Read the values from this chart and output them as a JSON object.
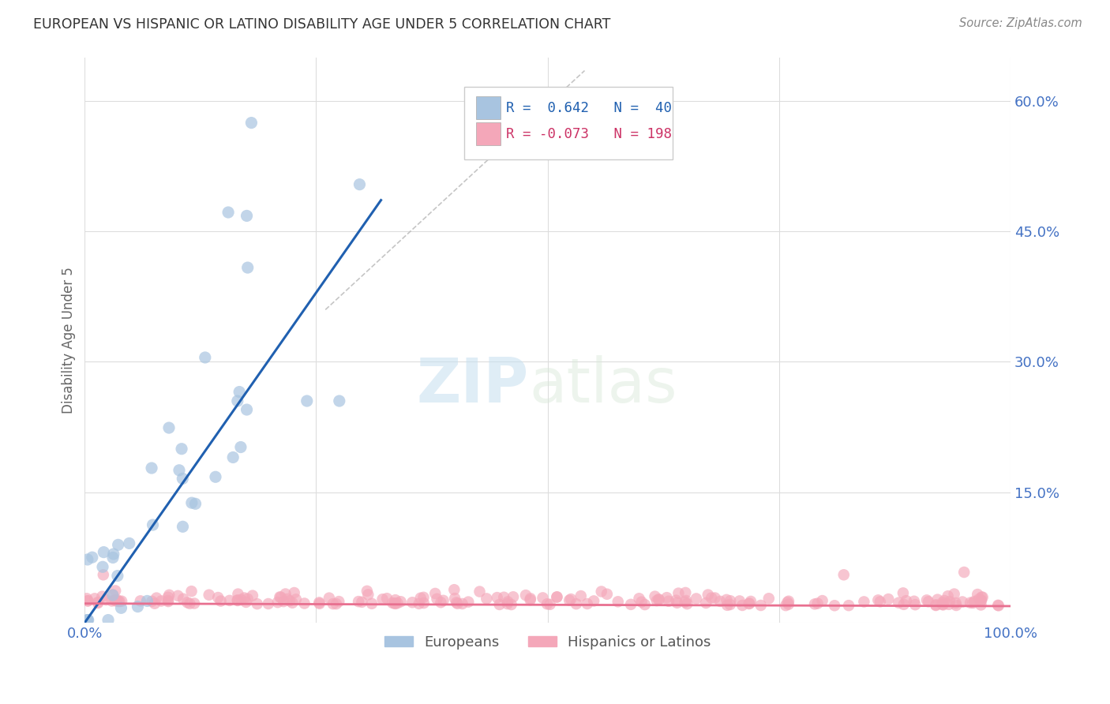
{
  "title": "EUROPEAN VS HISPANIC OR LATINO DISABILITY AGE UNDER 5 CORRELATION CHART",
  "source": "Source: ZipAtlas.com",
  "ylabel": "Disability Age Under 5",
  "xlabel": "",
  "xlim": [
    0.0,
    1.0
  ],
  "ylim": [
    0.0,
    0.65
  ],
  "x_ticks": [
    0.0,
    0.25,
    0.5,
    0.75,
    1.0
  ],
  "y_ticks": [
    0.0,
    0.15,
    0.3,
    0.45,
    0.6
  ],
  "european_color": "#a8c4e0",
  "hispanic_color": "#f4a7b9",
  "european_line_color": "#2060b0",
  "hispanic_line_color": "#e87090",
  "dashed_line_color": "#bbbbbb",
  "r_european": 0.642,
  "n_european": 40,
  "r_hispanic": -0.073,
  "n_hispanic": 198,
  "watermark_zip": "ZIP",
  "watermark_atlas": "atlas",
  "background_color": "#ffffff",
  "grid_color": "#dddddd",
  "title_color": "#333333",
  "axis_label_color": "#4472c4",
  "eu_slope": 1.55,
  "eu_intercept": -0.01,
  "hi_slope": -0.003,
  "hi_intercept": 0.022
}
